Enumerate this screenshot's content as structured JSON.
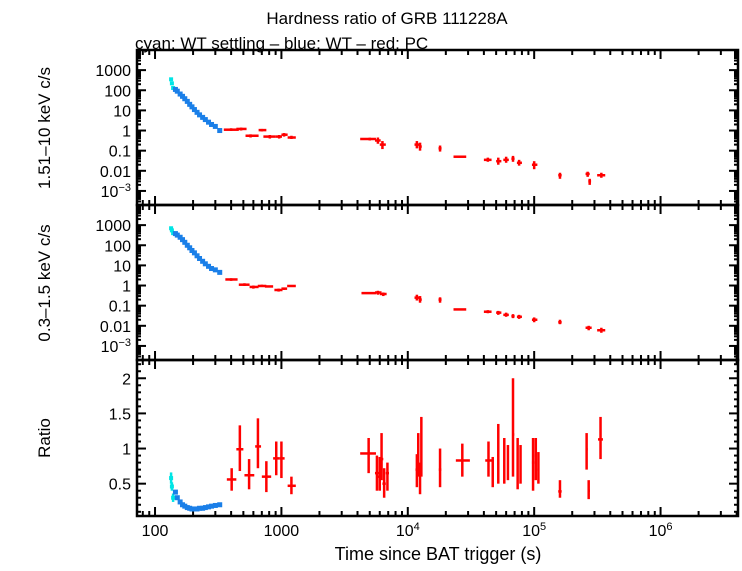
{
  "chart_data": {
    "type": "scatter",
    "title": "Hardness ratio of GRB 111228A",
    "subtitle": "cyan: WT settling – blue: WT – red: PC",
    "xlabel": "Time since BAT trigger (s)",
    "xscale": "log",
    "xlim": [
      72,
      4100000
    ],
    "xticks": [
      {
        "v": 100,
        "label": "100"
      },
      {
        "v": 1000,
        "label": "1000"
      },
      {
        "v": 10000,
        "label": "10",
        "sup": "4"
      },
      {
        "v": 100000,
        "label": "10",
        "sup": "5"
      },
      {
        "v": 1000000,
        "label": "10",
        "sup": "6"
      }
    ],
    "colors": {
      "wt_settling": "#00e5e5",
      "wt": "#1a7fe8",
      "pc": "#ff0000"
    },
    "panels": [
      {
        "ylabel": "1.51–10 keV c/s",
        "yscale": "log",
        "ylim": [
          0.0002,
          10000
        ],
        "yticks": [
          {
            "v": 1000,
            "label": "1000"
          },
          {
            "v": 100,
            "label": "100"
          },
          {
            "v": 10,
            "label": "10"
          },
          {
            "v": 1,
            "label": "1"
          },
          {
            "v": 0.1,
            "label": "0.1"
          },
          {
            "v": 0.01,
            "label": "0.01"
          },
          {
            "v": 0.001,
            "label": "10",
            "sup": "−3"
          }
        ],
        "wt_settling": [
          [
            134,
            350
          ],
          [
            136,
            220
          ],
          [
            139,
            130
          ]
        ],
        "wt": [
          [
            145,
            110
          ],
          [
            150,
            90
          ],
          [
            158,
            65
          ],
          [
            165,
            50
          ],
          [
            172,
            38
          ],
          [
            180,
            28
          ],
          [
            188,
            20
          ],
          [
            196,
            15
          ],
          [
            205,
            11
          ],
          [
            215,
            8
          ],
          [
            225,
            6
          ],
          [
            238,
            4.5
          ],
          [
            250,
            3.5
          ],
          [
            265,
            2.6
          ],
          [
            280,
            2
          ],
          [
            300,
            1.6
          ],
          [
            325,
            1.0
          ]
        ],
        "pc": [
          [
            400,
            350,
            460,
            1.1,
            0.95,
            1.3
          ],
          [
            480,
            440,
            530,
            1.2,
            1.0,
            1.4
          ],
          [
            570,
            520,
            660,
            0.55,
            0.45,
            0.65
          ],
          [
            700,
            660,
            760,
            1.05,
            0.9,
            1.2
          ],
          [
            810,
            720,
            900,
            0.5,
            0.4,
            0.6
          ],
          [
            960,
            900,
            1010,
            0.5,
            0.4,
            0.6
          ],
          [
            1050,
            1000,
            1120,
            0.62,
            0.5,
            0.75
          ],
          [
            1200,
            1120,
            1300,
            0.45,
            0.38,
            0.55
          ],
          [
            5000,
            4200,
            5600,
            0.38,
            0.32,
            0.44
          ],
          [
            5800,
            5500,
            6100,
            0.32,
            0.22,
            0.45
          ],
          [
            6300,
            6000,
            6700,
            0.2,
            0.12,
            0.3
          ],
          [
            11800,
            11300,
            12400,
            0.2,
            0.13,
            0.3
          ],
          [
            12500,
            12200,
            12900,
            0.16,
            0.1,
            0.25
          ],
          [
            18000,
            17500,
            18500,
            0.13,
            0.09,
            0.18
          ],
          [
            25500,
            23000,
            29000,
            0.05,
            0.045,
            0.055
          ],
          [
            43000,
            40000,
            46000,
            0.035,
            0.028,
            0.045
          ],
          [
            52000,
            50000,
            55000,
            0.03,
            0.02,
            0.045
          ],
          [
            60000,
            57000,
            63000,
            0.035,
            0.025,
            0.05
          ],
          [
            68000,
            66000,
            70000,
            0.04,
            0.028,
            0.055
          ],
          [
            76000,
            73000,
            80000,
            0.025,
            0.018,
            0.035
          ],
          [
            100000,
            96000,
            106000,
            0.02,
            0.012,
            0.03
          ],
          [
            160000,
            155000,
            165000,
            0.006,
            0.004,
            0.008
          ],
          [
            265000,
            255000,
            275000,
            0.007,
            0.005,
            0.009
          ],
          [
            275000,
            268000,
            282000,
            0.003,
            0.002,
            0.004
          ],
          [
            340000,
            315000,
            365000,
            0.006,
            0.0045,
            0.008
          ]
        ]
      },
      {
        "ylabel": "0.3–1.5 keV c/s",
        "yscale": "log",
        "ylim": [
          0.0002,
          10000
        ],
        "yticks": [
          {
            "v": 1000,
            "label": "1000"
          },
          {
            "v": 100,
            "label": "100"
          },
          {
            "v": 10,
            "label": "10"
          },
          {
            "v": 1,
            "label": "1"
          },
          {
            "v": 0.1,
            "label": "0.1"
          },
          {
            "v": 0.01,
            "label": "0.01"
          },
          {
            "v": 0.001,
            "label": "10",
            "sup": "−3"
          }
        ],
        "wt_settling": [
          [
            134,
            700
          ],
          [
            136,
            550
          ],
          [
            139,
            400
          ]
        ],
        "wt": [
          [
            145,
            380
          ],
          [
            150,
            320
          ],
          [
            158,
            250
          ],
          [
            165,
            190
          ],
          [
            172,
            140
          ],
          [
            180,
            100
          ],
          [
            188,
            75
          ],
          [
            196,
            55
          ],
          [
            205,
            42
          ],
          [
            215,
            30
          ],
          [
            225,
            22
          ],
          [
            238,
            16
          ],
          [
            250,
            12
          ],
          [
            265,
            9
          ],
          [
            280,
            7
          ],
          [
            300,
            6
          ],
          [
            325,
            4.5
          ]
        ],
        "pc": [
          [
            400,
            360,
            450,
            2.0,
            1.7,
            2.3
          ],
          [
            510,
            460,
            560,
            1.1,
            0.95,
            1.3
          ],
          [
            600,
            560,
            660,
            0.85,
            0.7,
            1.0
          ],
          [
            700,
            650,
            760,
            0.95,
            0.85,
            1.1
          ],
          [
            800,
            740,
            860,
            0.9,
            0.8,
            1.0
          ],
          [
            950,
            880,
            1020,
            0.6,
            0.5,
            0.7
          ],
          [
            1050,
            1000,
            1110,
            0.7,
            0.6,
            0.8
          ],
          [
            1200,
            1110,
            1300,
            0.95,
            0.85,
            1.05
          ],
          [
            5000,
            4300,
            5600,
            0.42,
            0.38,
            0.46
          ],
          [
            5800,
            5500,
            6200,
            0.45,
            0.35,
            0.55
          ],
          [
            6400,
            6000,
            6800,
            0.38,
            0.3,
            0.45
          ],
          [
            11800,
            11300,
            12400,
            0.25,
            0.18,
            0.35
          ],
          [
            12500,
            12200,
            12900,
            0.2,
            0.14,
            0.3
          ],
          [
            18000,
            17500,
            18500,
            0.2,
            0.14,
            0.26
          ],
          [
            25500,
            23000,
            29000,
            0.065,
            0.058,
            0.072
          ],
          [
            43000,
            40000,
            46000,
            0.05,
            0.042,
            0.06
          ],
          [
            52000,
            50000,
            55000,
            0.045,
            0.035,
            0.055
          ],
          [
            60000,
            57000,
            63000,
            0.035,
            0.028,
            0.045
          ],
          [
            68000,
            66000,
            70000,
            0.03,
            0.024,
            0.038
          ],
          [
            76000,
            73000,
            80000,
            0.028,
            0.022,
            0.035
          ],
          [
            100000,
            96000,
            106000,
            0.02,
            0.015,
            0.026
          ],
          [
            160000,
            155000,
            165000,
            0.015,
            0.012,
            0.02
          ],
          [
            270000,
            255000,
            285000,
            0.008,
            0.006,
            0.01
          ],
          [
            340000,
            315000,
            365000,
            0.006,
            0.0045,
            0.008
          ]
        ]
      },
      {
        "ylabel": "Ratio",
        "yscale": "linear",
        "ylim": [
          0.04,
          2.26
        ],
        "yticks": [
          {
            "v": 2,
            "label": "2"
          },
          {
            "v": 1.5,
            "label": "1.5"
          },
          {
            "v": 1,
            "label": "1"
          },
          {
            "v": 0.5,
            "label": "0.5"
          }
        ],
        "wt_settling": [
          [
            134,
            0.58,
            0.5,
            0.66
          ],
          [
            136,
            0.46,
            0.4,
            0.52
          ],
          [
            139,
            0.3,
            0.24,
            0.36
          ]
        ],
        "wt": [
          [
            145,
            0.38
          ],
          [
            150,
            0.3
          ],
          [
            158,
            0.24
          ],
          [
            165,
            0.2
          ],
          [
            172,
            0.18
          ],
          [
            180,
            0.16
          ],
          [
            188,
            0.15
          ],
          [
            196,
            0.14
          ],
          [
            205,
            0.14
          ],
          [
            215,
            0.14
          ],
          [
            225,
            0.15
          ],
          [
            238,
            0.15
          ],
          [
            250,
            0.16
          ],
          [
            265,
            0.17
          ],
          [
            280,
            0.18
          ],
          [
            300,
            0.19
          ],
          [
            325,
            0.2
          ]
        ],
        "pc": [
          [
            404,
            370,
            440,
            0.56,
            0.4,
            0.72
          ],
          [
            469,
            440,
            500,
            0.99,
            0.68,
            1.33
          ],
          [
            555,
            510,
            610,
            0.62,
            0.42,
            0.85
          ],
          [
            652,
            620,
            690,
            1.03,
            0.72,
            1.43
          ],
          [
            760,
            700,
            830,
            0.6,
            0.38,
            0.82
          ],
          [
            910,
            860,
            960,
            0.86,
            0.62,
            1.1
          ],
          [
            1000,
            960,
            1060,
            0.86,
            0.58,
            1.1
          ],
          [
            1200,
            1120,
            1300,
            0.47,
            0.35,
            0.6
          ],
          [
            4900,
            4200,
            5600,
            0.93,
            0.65,
            1.15
          ],
          [
            5700,
            5500,
            5900,
            0.65,
            0.4,
            0.9
          ],
          [
            6000,
            5800,
            6200,
            0.6,
            0.4,
            0.88
          ],
          [
            6200,
            6000,
            6400,
            0.85,
            0.55,
            1.22
          ],
          [
            6500,
            6300,
            6700,
            0.5,
            0.3,
            0.72
          ],
          [
            6900,
            6700,
            7100,
            0.65,
            0.4,
            0.8
          ],
          [
            11800,
            11500,
            12100,
            0.7,
            0.45,
            0.92
          ],
          [
            12100,
            11900,
            12300,
            0.9,
            0.6,
            1.22
          ],
          [
            12500,
            12300,
            12700,
            0.55,
            0.35,
            0.8
          ],
          [
            12800,
            12600,
            13000,
            1.05,
            0.6,
            1.45
          ],
          [
            18000,
            17600,
            18400,
            0.7,
            0.45,
            1.0
          ],
          [
            27000,
            24000,
            31000,
            0.83,
            0.6,
            1.07
          ],
          [
            43500,
            41000,
            46000,
            0.83,
            0.6,
            1.1
          ],
          [
            47000,
            46000,
            48000,
            0.65,
            0.45,
            0.88
          ],
          [
            52000,
            51000,
            53000,
            0.9,
            0.5,
            1.35
          ],
          [
            58000,
            57000,
            59000,
            0.75,
            0.5,
            1.15
          ],
          [
            62000,
            61000,
            63000,
            0.85,
            0.55,
            1.05
          ],
          [
            68000,
            67000,
            69500,
            1.2,
            0.6,
            2.0
          ],
          [
            74000,
            73000,
            75000,
            0.65,
            0.42,
            1.15
          ],
          [
            78000,
            77000,
            79000,
            0.8,
            0.5,
            1.05
          ],
          [
            98000,
            96000,
            100000,
            0.8,
            0.4,
            1.15
          ],
          [
            103000,
            101000,
            105000,
            0.9,
            0.55,
            1.15
          ],
          [
            108000,
            106000,
            110000,
            0.7,
            0.5,
            0.95
          ],
          [
            160000,
            155000,
            165000,
            0.39,
            0.3,
            0.55
          ],
          [
            260000,
            255000,
            265000,
            0.99,
            0.7,
            1.22
          ],
          [
            270000,
            265000,
            276000,
            0.4,
            0.28,
            0.55
          ],
          [
            335000,
            320000,
            350000,
            1.13,
            0.85,
            1.45
          ]
        ]
      }
    ]
  }
}
